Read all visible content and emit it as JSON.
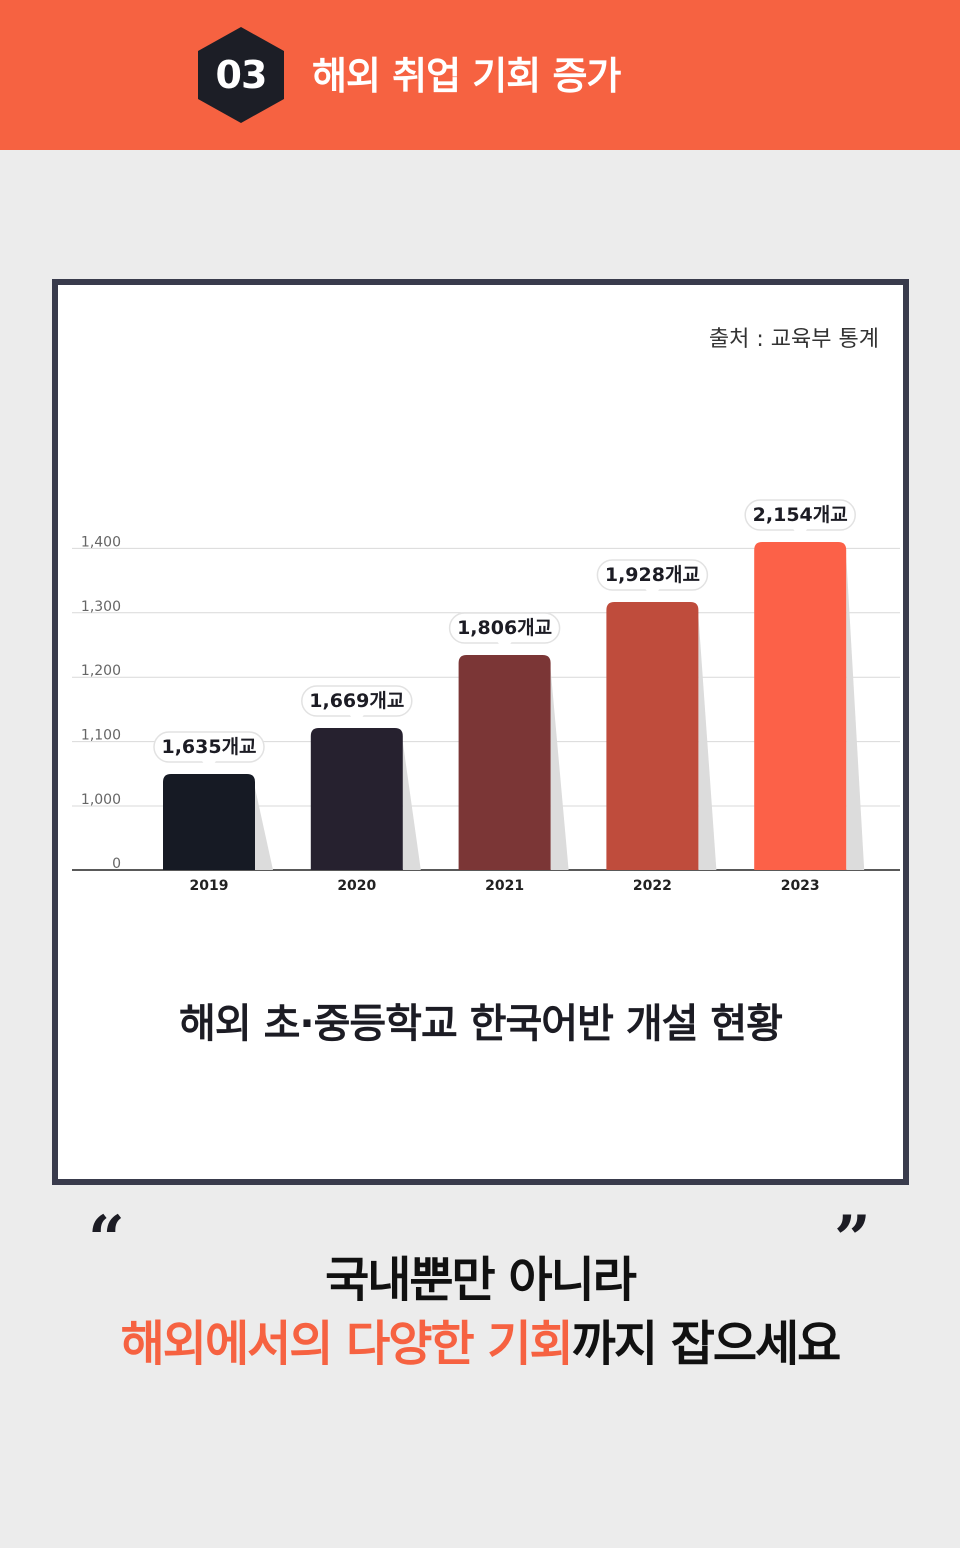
{
  "header": {
    "number": "03",
    "title": "해외 취업 기회 증가"
  },
  "colors": {
    "header_bg": "#f66241",
    "accent": "#f66241",
    "frame_border": "#393b4c",
    "bars": [
      "#161a24",
      "#26212f",
      "#7b3636",
      "#bf4c3c",
      "#fc6148"
    ]
  },
  "chart": {
    "source": "출처 : 교육부 통계",
    "title": "해외 초·중등학교 한국어반 개설 현황"
  },
  "chart_data": {
    "type": "bar",
    "categories": [
      "2019",
      "2020",
      "2021",
      "2022",
      "2023"
    ],
    "values": [
      1635,
      1669,
      1806,
      1928,
      2154
    ],
    "data_labels": [
      "1,635개교",
      "1,669개교",
      "1,806개교",
      "1,928개교",
      "2,154개교"
    ],
    "y_ticks": [
      0,
      1000,
      1100,
      1200,
      1300,
      1400
    ],
    "y_tick_labels": [
      "0",
      "1,000",
      "1,100",
      "1,200",
      "1,300",
      "1,400"
    ],
    "y_axis_break": true,
    "grid": true
  },
  "footer": {
    "quote_open": "“",
    "quote_close": "”",
    "line1": "국내뿐만 아니라",
    "line2_accent": "해외에서의 다양한 기회",
    "line2_rest": "까지 잡으세요"
  }
}
